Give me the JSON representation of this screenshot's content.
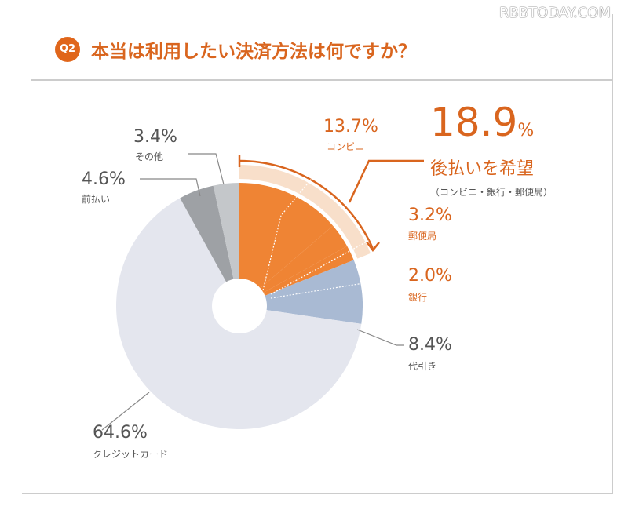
{
  "watermark": "RBBTODAY.COM",
  "header": {
    "badge": "Q2",
    "title": "本当は利用したい決済方法は何ですか？"
  },
  "callout": {
    "value": "18.9",
    "unit": "%",
    "label": "後払いを希望",
    "sub": "（コンビニ・銀行・郵便局）"
  },
  "chart_data": {
    "type": "pie",
    "title": "本当は利用したい決済方法は何ですか？",
    "donut": true,
    "slices": [
      {
        "label": "コンビニ",
        "value": 13.7,
        "display": "13.7%",
        "color": "#ef8434"
      },
      {
        "label": "郵便局",
        "value": 3.2,
        "display": "3.2%",
        "color": "#ef8434"
      },
      {
        "label": "銀行",
        "value": 2.0,
        "display": "2.0%",
        "color": "#ef8434"
      },
      {
        "label": "代引き",
        "value": 8.4,
        "display": "8.4%",
        "color": "#a9bad3"
      },
      {
        "label": "クレジットカード",
        "value": 64.6,
        "display": "64.6%",
        "color": "#e4e6ee"
      },
      {
        "label": "前払い",
        "value": 4.6,
        "display": "4.6%",
        "color": "#9ea1a5"
      },
      {
        "label": "その他",
        "value": 3.4,
        "display": "3.4%",
        "color": "#c4c7ca"
      }
    ]
  }
}
